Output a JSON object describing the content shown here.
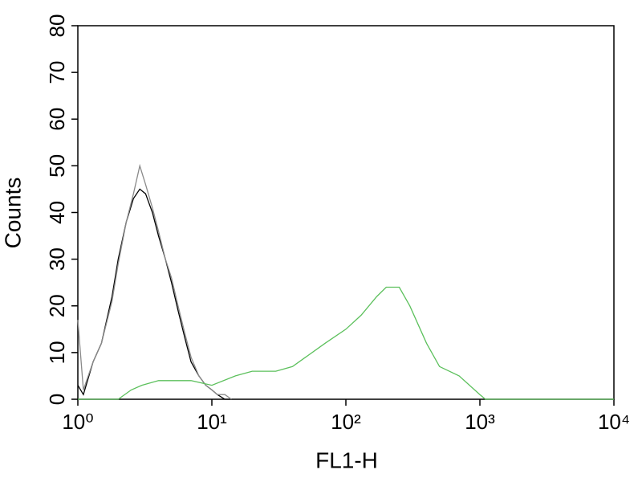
{
  "chart_data": {
    "type": "line",
    "xlabel": "FL1-H",
    "ylabel": "Counts",
    "xscale": "log",
    "xlim": [
      1,
      10000
    ],
    "xticks": [
      {
        "value": 1,
        "label": "10⁰"
      },
      {
        "value": 10,
        "label": "10¹"
      },
      {
        "value": 100,
        "label": "10²"
      },
      {
        "value": 1000,
        "label": "10³"
      },
      {
        "value": 10000,
        "label": "10⁴"
      }
    ],
    "ylim": [
      0,
      80
    ],
    "yticks": [
      0,
      10,
      20,
      30,
      40,
      50,
      60,
      70,
      80
    ],
    "series": [
      {
        "color": "#000000",
        "x": [
          1,
          1.1,
          1.3,
          1.5,
          1.8,
          2.0,
          2.3,
          2.6,
          2.9,
          3.2,
          3.6,
          4.0,
          4.5,
          5.0,
          5.6,
          6.3,
          7.0,
          8.0,
          9.0,
          10,
          11,
          12.5,
          14
        ],
        "values": [
          3,
          1,
          8,
          12,
          22,
          30,
          38,
          43,
          45,
          44,
          40,
          35,
          30,
          25,
          19,
          13,
          8,
          5,
          3,
          2,
          1,
          0,
          0
        ]
      },
      {
        "color": "#8a8a8a",
        "x": [
          1,
          1.1,
          1.3,
          1.5,
          1.8,
          2.0,
          2.3,
          2.6,
          2.9,
          3.2,
          3.6,
          4.0,
          4.5,
          5.0,
          5.6,
          6.3,
          7.0,
          8.0,
          9.0,
          10,
          11,
          12.5,
          14
        ],
        "values": [
          17,
          2,
          8,
          12,
          21,
          29,
          38,
          44,
          50,
          46,
          41,
          36,
          30,
          26,
          20,
          14,
          9,
          5,
          3,
          2,
          1,
          1,
          0
        ]
      },
      {
        "color": "#5cc05c",
        "x": [
          1,
          2,
          2.5,
          3,
          4,
          5,
          7,
          10,
          15,
          20,
          30,
          40,
          50,
          70,
          100,
          130,
          170,
          200,
          250,
          300,
          400,
          500,
          700,
          1000,
          1100,
          10000
        ],
        "values": [
          0,
          0,
          2,
          3,
          4,
          4,
          4,
          3,
          5,
          6,
          6,
          7,
          9,
          12,
          15,
          18,
          22,
          24,
          24,
          20,
          12,
          7,
          5,
          1,
          0,
          0
        ]
      }
    ]
  }
}
